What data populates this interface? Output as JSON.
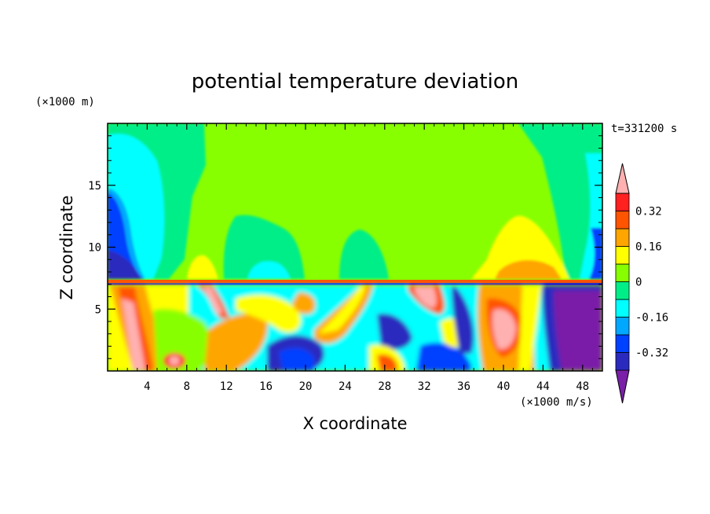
{
  "chart_data": {
    "type": "heatmap",
    "title": "potential temperature deviation",
    "xlabel": "X coordinate",
    "ylabel": "Z coordinate",
    "x_unit": "(×1000 m/s)",
    "y_unit": "(×1000 m)",
    "time_label": "t=331200 s",
    "xlim": [
      0,
      50
    ],
    "ylim": [
      0,
      20
    ],
    "x_ticks": [
      4,
      8,
      12,
      16,
      20,
      24,
      28,
      32,
      36,
      40,
      44,
      48
    ],
    "y_ticks": [
      5,
      10,
      15
    ],
    "colorbar": {
      "levels": [
        -0.4,
        -0.32,
        -0.24,
        -0.16,
        -0.08,
        0,
        0.08,
        0.16,
        0.24,
        0.32,
        0.4
      ],
      "tick_labels": [
        "-0.32",
        "-0.16",
        "0",
        "0.16",
        "0.32"
      ],
      "tick_values": [
        -0.32,
        -0.16,
        0,
        0.16,
        0.32
      ],
      "colors": [
        "#7a1fa8",
        "#2a2abf",
        "#0040ff",
        "#00a8ff",
        "#00ffff",
        "#00ee88",
        "#88ff00",
        "#ffff00",
        "#ffa500",
        "#ff5500",
        "#ff2020",
        "#ffb0b0"
      ]
    }
  }
}
